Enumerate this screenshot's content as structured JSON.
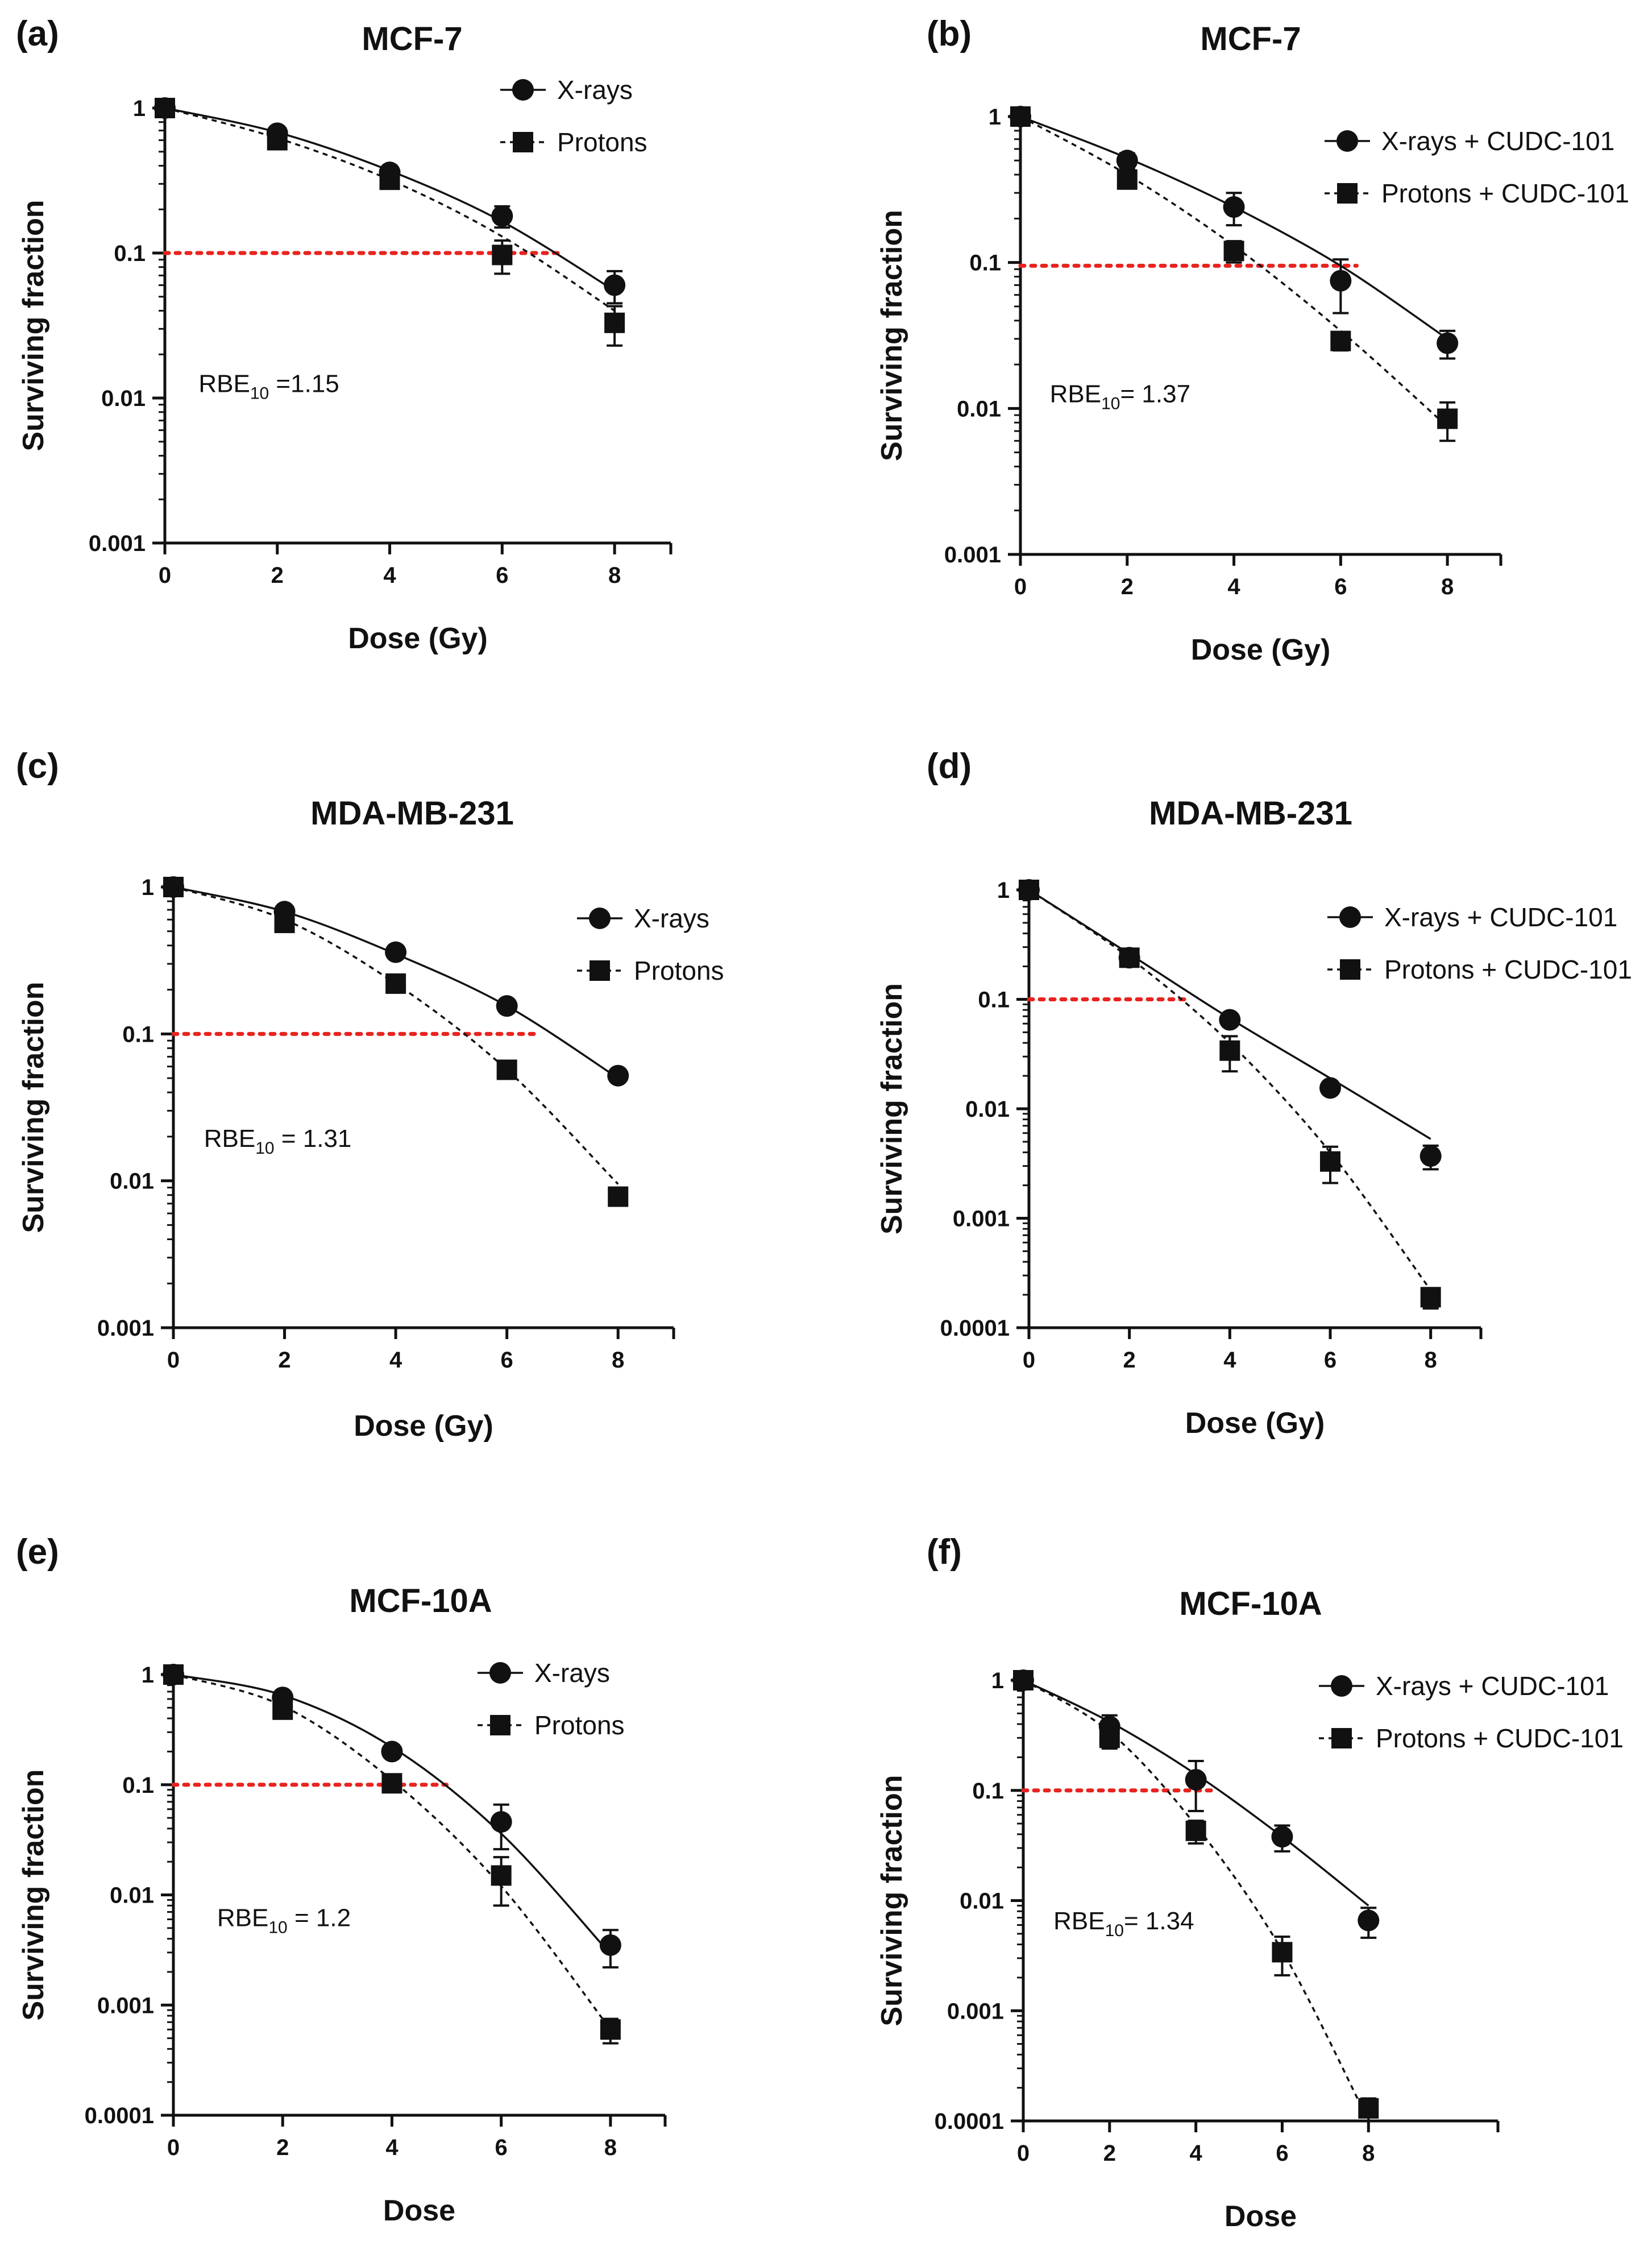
{
  "chart_data": [
    {
      "type": "line",
      "panel": "(a)",
      "title": "MCF-7",
      "xlabel": "Dose (Gy)",
      "ylabel": "Surviving fraction",
      "x_ticks": [
        "0",
        "2",
        "4",
        "6",
        "8"
      ],
      "y_ticks": [
        "1",
        "0.1",
        "0.01",
        "0.001"
      ],
      "xlim": [
        0,
        9
      ],
      "ylim": [
        0.001,
        1
      ],
      "yscale": "log",
      "reference_line": {
        "y": 0.1,
        "x_end": 7.1,
        "color": "#e8231e"
      },
      "annotation": {
        "prefix": "RBE",
        "sub": "10",
        "suffix": " =1.15",
        "x": 0.6,
        "y": 0.011
      },
      "legend": {
        "position": "top-right"
      },
      "series": [
        {
          "name": "X-rays",
          "marker": "circle",
          "dash": false,
          "x": [
            0,
            2,
            4,
            6,
            8
          ],
          "values": [
            1,
            0.67,
            0.36,
            0.18,
            0.06
          ],
          "err": [
            0.05,
            0.06,
            0.04,
            0.03,
            0.015
          ],
          "fit": [
            [
              0,
              1
            ],
            [
              2,
              0.68
            ],
            [
              4,
              0.37
            ],
            [
              6,
              0.165
            ],
            [
              8,
              0.055
            ]
          ]
        },
        {
          "name": "Protons",
          "marker": "square",
          "dash": true,
          "x": [
            0,
            2,
            4,
            6,
            8
          ],
          "values": [
            1,
            0.6,
            0.32,
            0.097,
            0.033
          ],
          "err": [
            0.05,
            0.06,
            0.04,
            0.025,
            0.01
          ],
          "fit": [
            [
              0,
              1
            ],
            [
              2,
              0.62
            ],
            [
              4,
              0.32
            ],
            [
              6,
              0.13
            ],
            [
              8,
              0.04
            ]
          ]
        }
      ]
    },
    {
      "type": "line",
      "panel": "(b)",
      "title": "MCF-7",
      "xlabel": "Dose (Gy)",
      "ylabel": "Surviving fraction",
      "x_ticks": [
        "0",
        "2",
        "4",
        "6",
        "8"
      ],
      "y_ticks": [
        "1",
        "0.1",
        "0.01",
        "0.001"
      ],
      "xlim": [
        0,
        9
      ],
      "ylim": [
        0.001,
        1
      ],
      "yscale": "log",
      "reference_line": {
        "y": 0.095,
        "x_end": 6.3,
        "color": "#e8231e"
      },
      "annotation": {
        "prefix": "RBE",
        "sub": "10",
        "suffix": "= 1.37",
        "x": 0.55,
        "y": 0.011
      },
      "legend": {
        "position": "top-right"
      },
      "series": [
        {
          "name": "X-rays + CUDC-101",
          "marker": "circle",
          "dash": false,
          "x": [
            0,
            2,
            4,
            6,
            8
          ],
          "values": [
            1,
            0.5,
            0.24,
            0.075,
            0.028
          ],
          "err": [
            0.05,
            0.06,
            0.06,
            0.03,
            0.006
          ],
          "fit": [
            [
              0,
              1
            ],
            [
              2,
              0.52
            ],
            [
              4,
              0.24
            ],
            [
              6,
              0.095
            ],
            [
              8,
              0.03
            ]
          ]
        },
        {
          "name": "Protons + CUDC-101",
          "marker": "square",
          "dash": true,
          "x": [
            0,
            2,
            4,
            6,
            8
          ],
          "values": [
            1,
            0.37,
            0.12,
            0.029,
            0.0085
          ],
          "err": [
            0.05,
            0.04,
            0.02,
            0.004,
            0.0025
          ],
          "fit": [
            [
              0,
              1
            ],
            [
              2,
              0.4
            ],
            [
              4,
              0.13
            ],
            [
              6,
              0.034
            ],
            [
              8,
              0.0075
            ]
          ]
        }
      ]
    },
    {
      "type": "line",
      "panel": "(c)",
      "title": "MDA-MB-231",
      "xlabel": "Dose (Gy)",
      "ylabel": "Surviving fraction",
      "x_ticks": [
        "0",
        "2",
        "4",
        "6",
        "8"
      ],
      "y_ticks": [
        "1",
        "0.1",
        "0.01",
        "0.001"
      ],
      "xlim": [
        0,
        9
      ],
      "ylim": [
        0.001,
        1
      ],
      "yscale": "log",
      "reference_line": {
        "y": 0.1,
        "x_end": 6.6,
        "color": "#e8231e"
      },
      "annotation": {
        "prefix": "RBE",
        "sub": "10",
        "suffix": " = 1.31",
        "x": 0.55,
        "y": 0.017
      },
      "legend": {
        "position": "top-right"
      },
      "series": [
        {
          "name": "X-rays",
          "marker": "circle",
          "dash": false,
          "x": [
            0,
            2,
            4,
            6,
            8
          ],
          "values": [
            1,
            0.68,
            0.36,
            0.155,
            0.052
          ],
          "err": [
            0.04,
            0.05,
            0.03,
            0.01,
            0.004
          ],
          "fit": [
            [
              0,
              1
            ],
            [
              2,
              0.68
            ],
            [
              4,
              0.35
            ],
            [
              6,
              0.155
            ],
            [
              8,
              0.05
            ]
          ]
        },
        {
          "name": "Protons",
          "marker": "square",
          "dash": true,
          "x": [
            0,
            2,
            4,
            6,
            8
          ],
          "values": [
            1,
            0.57,
            0.22,
            0.057,
            0.0078
          ],
          "err": [
            0.04,
            0.04,
            0.02,
            0.005,
            0.0007
          ],
          "fit": [
            [
              0,
              1
            ],
            [
              2,
              0.6
            ],
            [
              4,
              0.22
            ],
            [
              6,
              0.057
            ],
            [
              8,
              0.0095
            ]
          ]
        }
      ]
    },
    {
      "type": "line",
      "panel": "(d)",
      "title": "MDA-MB-231",
      "xlabel": "Dose (Gy)",
      "ylabel": "Surviving fraction",
      "x_ticks": [
        "0",
        "2",
        "4",
        "6",
        "8"
      ],
      "y_ticks": [
        "1",
        "0.1",
        "0.01",
        "0.001",
        "0.0001"
      ],
      "xlim": [
        0,
        9
      ],
      "ylim": [
        0.0001,
        1
      ],
      "yscale": "log",
      "reference_line": {
        "y": 0.1,
        "x_end": 3.1,
        "color": "#e8231e"
      },
      "annotation": null,
      "legend": {
        "position": "top-right"
      },
      "series": [
        {
          "name": "X-rays + CUDC-101",
          "marker": "circle",
          "dash": false,
          "x": [
            0,
            2,
            4,
            6,
            8
          ],
          "values": [
            1,
            0.24,
            0.065,
            0.0155,
            0.0037
          ],
          "err": [
            0.04,
            0.02,
            0.005,
            0.0012,
            0.0009
          ],
          "fit": [
            [
              0,
              1
            ],
            [
              2,
              0.26
            ],
            [
              4,
              0.067
            ],
            [
              6,
              0.019
            ],
            [
              8,
              0.0053
            ]
          ]
        },
        {
          "name": "Protons + CUDC-101",
          "marker": "square",
          "dash": true,
          "x": [
            0,
            2,
            4,
            6,
            8
          ],
          "values": [
            1,
            0.24,
            0.034,
            0.0033,
            0.00019
          ],
          "err": [
            0.04,
            0.02,
            0.012,
            0.0012,
            4e-05
          ],
          "fit": [
            [
              0,
              1
            ],
            [
              2,
              0.24
            ],
            [
              4,
              0.04
            ],
            [
              6,
              0.004
            ],
            [
              8,
              0.00022
            ]
          ]
        }
      ]
    },
    {
      "type": "line",
      "panel": "(e)",
      "title": "MCF-10A",
      "xlabel": "Dose",
      "ylabel": "Surviving fraction",
      "x_ticks": [
        "0",
        "2",
        "4",
        "6",
        "8"
      ],
      "y_ticks": [
        "1",
        "0.1",
        "0.01",
        "0.001",
        "0.0001"
      ],
      "xlim": [
        0,
        9
      ],
      "ylim": [
        0.0001,
        1
      ],
      "yscale": "log",
      "reference_line": {
        "y": 0.1,
        "x_end": 5.0,
        "color": "#e8231e"
      },
      "annotation": {
        "prefix": "RBE",
        "sub": "10",
        "suffix": " = 1.2",
        "x": 0.8,
        "y": 0.0052
      },
      "legend": {
        "position": "top-right"
      },
      "series": [
        {
          "name": "X-rays",
          "marker": "circle",
          "dash": false,
          "x": [
            0,
            2,
            4,
            6,
            8
          ],
          "values": [
            1,
            0.62,
            0.2,
            0.046,
            0.0035
          ],
          "err": [
            0.05,
            0.06,
            0.02,
            0.02,
            0.0013
          ],
          "fit": [
            [
              0,
              1
            ],
            [
              2,
              0.65
            ],
            [
              4,
              0.22
            ],
            [
              6,
              0.036
            ],
            [
              8,
              0.0029
            ]
          ]
        },
        {
          "name": "Protons",
          "marker": "square",
          "dash": true,
          "x": [
            0,
            2,
            4,
            6,
            8
          ],
          "values": [
            1,
            0.48,
            0.103,
            0.015,
            0.0006
          ],
          "err": [
            0.05,
            0.05,
            0.01,
            0.007,
            0.00015
          ],
          "fit": [
            [
              0,
              1
            ],
            [
              2,
              0.52
            ],
            [
              4,
              0.11
            ],
            [
              6,
              0.012
            ],
            [
              8,
              0.0006
            ]
          ]
        }
      ]
    },
    {
      "type": "line",
      "panel": "(f)",
      "title": "MCF-10A",
      "xlabel": "Dose",
      "ylabel": "Surviving fraction",
      "x_ticks": [
        "0",
        "2",
        "4",
        "6",
        "8"
      ],
      "y_ticks": [
        "1",
        "0.1",
        "0.01",
        "0.001",
        "0.0001"
      ],
      "xlim": [
        0,
        11
      ],
      "ylim": [
        0.0001,
        1
      ],
      "yscale": "log",
      "reference_line": {
        "y": 0.1,
        "x_end": 4.5,
        "color": "#e8231e"
      },
      "annotation": {
        "prefix": "RBE",
        "sub": "10",
        "suffix": "= 1.34",
        "x": 0.7,
        "y": 0.0055
      },
      "legend": {
        "position": "top-right"
      },
      "series": [
        {
          "name": "X-rays + CUDC-101",
          "marker": "circle",
          "dash": false,
          "x": [
            0,
            2,
            4,
            6,
            8
          ],
          "values": [
            1,
            0.38,
            0.125,
            0.038,
            0.0066
          ],
          "err": [
            0.05,
            0.1,
            0.06,
            0.01,
            0.002
          ],
          "fit": [
            [
              0,
              1
            ],
            [
              2,
              0.42
            ],
            [
              4,
              0.14
            ],
            [
              6,
              0.038
            ],
            [
              8,
              0.009
            ]
          ]
        },
        {
          "name": "Protons + CUDC-101",
          "marker": "square",
          "dash": true,
          "x": [
            0,
            2,
            4,
            6,
            8
          ],
          "values": [
            1,
            0.3,
            0.043,
            0.0034,
            0.00013
          ],
          "err": [
            0.05,
            0.06,
            0.01,
            0.0013,
            3e-05
          ],
          "fit": [
            [
              0,
              1
            ],
            [
              2,
              0.34
            ],
            [
              4,
              0.048
            ],
            [
              6,
              0.0035
            ],
            [
              8,
              0.0001
            ]
          ]
        }
      ]
    }
  ]
}
